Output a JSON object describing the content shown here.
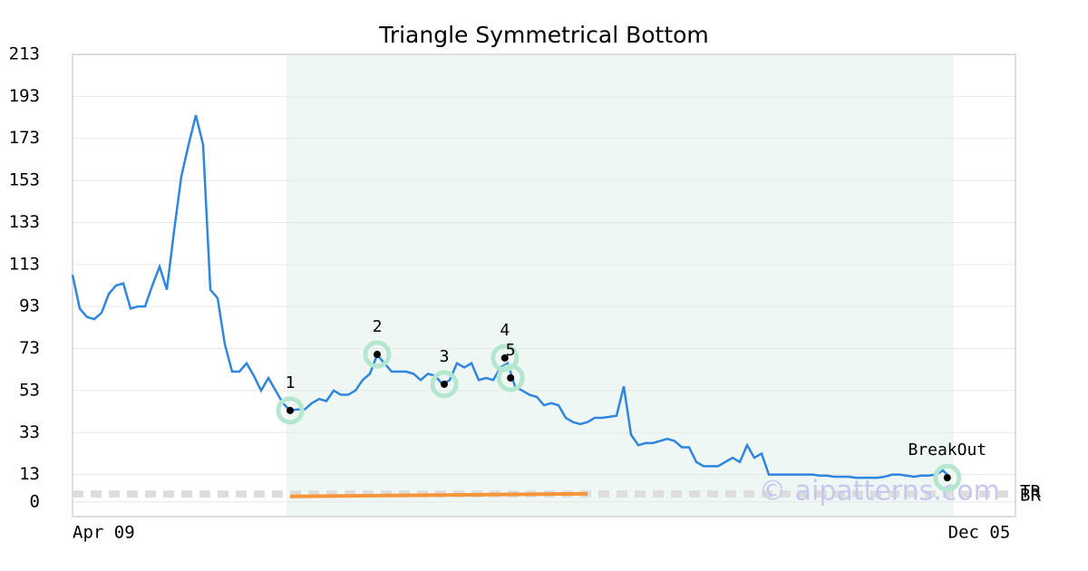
{
  "chart_data": {
    "type": "line",
    "title": "Triangle Symmetrical Bottom",
    "xlim": [
      0,
      130
    ],
    "ylim": [
      -7,
      213
    ],
    "yticks": [
      0,
      13,
      33,
      53,
      73,
      93,
      113,
      133,
      153,
      173,
      193,
      213
    ],
    "xticks": [
      {
        "value": 0,
        "label": "Apr 09"
      },
      {
        "value": 125,
        "label": "Dec 05"
      }
    ],
    "grid": true,
    "highlight": [
      29.5,
      121.5
    ],
    "series": [
      {
        "color": "#2e86de",
        "x": [
          0,
          1,
          2,
          3,
          4,
          5,
          6,
          7,
          8,
          9,
          10,
          11,
          12,
          13,
          14,
          15,
          16,
          17,
          18,
          19,
          20,
          21,
          22,
          23,
          24,
          25,
          26,
          27,
          28,
          29,
          30,
          31,
          32,
          33,
          34,
          35,
          36,
          37,
          38,
          39,
          40,
          41,
          42,
          43,
          44,
          45,
          46,
          47,
          48,
          49,
          50,
          51,
          52,
          53,
          54,
          55,
          56,
          57,
          58,
          59,
          60,
          61,
          62,
          63,
          64,
          65,
          66,
          67,
          68,
          69,
          70,
          71,
          72,
          73,
          74,
          75,
          76,
          77,
          78,
          79,
          80,
          81,
          82,
          83,
          84,
          85,
          86,
          87,
          88,
          89,
          90,
          91,
          92,
          93,
          94,
          95,
          96,
          97,
          98,
          99,
          100,
          101,
          102,
          103,
          104,
          105,
          106,
          107,
          108,
          109,
          110,
          111,
          112,
          113,
          114,
          115,
          116,
          117,
          118,
          119,
          120,
          121
        ],
        "values": [
          108,
          92,
          88,
          87,
          90,
          99,
          103,
          104,
          92,
          93,
          93,
          103,
          112,
          101,
          129,
          155,
          170,
          184,
          170,
          101,
          97,
          75,
          62,
          62,
          66,
          60,
          53,
          59,
          53,
          47,
          43.5,
          44,
          44,
          47,
          49,
          48,
          53,
          51,
          51,
          53,
          58,
          61,
          70,
          66,
          62,
          62,
          62,
          61,
          58,
          61,
          60,
          56,
          58,
          66,
          64,
          66,
          58,
          59,
          58,
          64,
          66,
          55,
          53,
          51,
          50,
          46,
          47,
          46,
          40,
          38,
          37,
          38,
          40,
          40,
          40.5,
          41,
          55,
          32,
          27,
          28,
          28,
          29,
          30,
          29,
          26,
          26,
          19,
          17,
          17,
          17,
          19,
          21,
          19,
          27,
          21,
          23,
          13,
          13,
          13,
          13,
          13,
          13,
          13,
          12.5,
          12.5,
          12,
          12,
          12,
          11.5,
          11.5,
          11.5,
          11.5,
          12,
          13,
          13,
          12.5,
          12,
          12.5,
          12.5,
          13,
          15,
          11.5
        ]
      }
    ],
    "pattern_points": [
      {
        "label": "1",
        "x": 30,
        "y": 43.5
      },
      {
        "label": "2",
        "x": 42,
        "y": 70.2
      },
      {
        "label": "3",
        "x": 51.25,
        "y": 56
      },
      {
        "label": "4",
        "x": 59.6,
        "y": 68.5
      },
      {
        "label": "5",
        "x": 60.4,
        "y": 59
      },
      {
        "label": "BreakOut",
        "x": 120.6,
        "y": 11.5
      }
    ],
    "levels": [
      {
        "label": "TR",
        "value": 4.6
      },
      {
        "label": "BR",
        "value": 3
      }
    ],
    "trendline": {
      "x": [
        30,
        71
      ],
      "values": [
        2.6,
        3.9
      ],
      "color": "#f7953a"
    },
    "watermark": "© aipatterns.com"
  }
}
